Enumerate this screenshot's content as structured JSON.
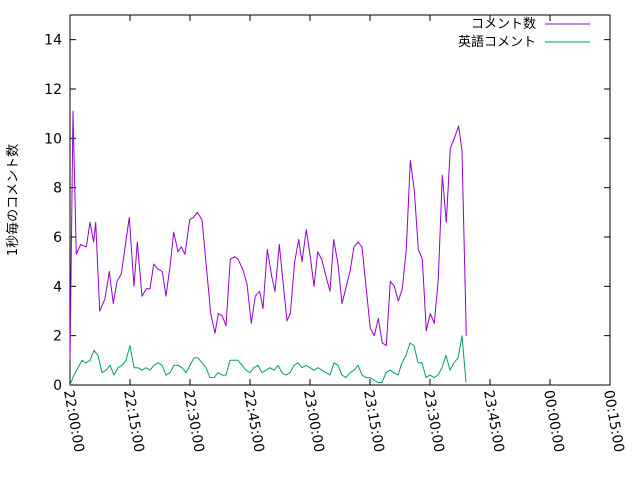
{
  "chart_data": {
    "type": "line",
    "title": "",
    "xlabel": "",
    "ylabel": "1秒毎のコメント数",
    "xlim": [
      "22:00:00",
      "00:15:00"
    ],
    "ylim": [
      0,
      15
    ],
    "grid": false,
    "legend_position": "top-right",
    "x_tick_labels": [
      "22:00:00",
      "22:15:00",
      "22:30:00",
      "22:45:00",
      "23:00:00",
      "23:15:00",
      "23:30:00",
      "23:45:00",
      "00:00:00",
      "00:15:00"
    ],
    "y_ticks": [
      0,
      2,
      4,
      6,
      8,
      10,
      12,
      14
    ],
    "series": [
      {
        "name": "コメント数",
        "color": "#9400d3",
        "points": [
          [
            "22:00:00",
            1.0
          ],
          [
            "22:00:45",
            11.1
          ],
          [
            "22:01:35",
            5.3
          ],
          [
            "22:02:40",
            5.7
          ],
          [
            "22:04:05",
            5.6
          ],
          [
            "22:05:00",
            6.6
          ],
          [
            "22:05:55",
            5.8
          ],
          [
            "22:06:25",
            6.6
          ],
          [
            "22:07:25",
            3.0
          ],
          [
            "22:08:45",
            3.5
          ],
          [
            "22:09:50",
            4.6
          ],
          [
            "22:10:50",
            3.3
          ],
          [
            "22:11:45",
            4.2
          ],
          [
            "22:12:50",
            4.5
          ],
          [
            "22:14:50",
            6.8
          ],
          [
            "22:16:00",
            4.0
          ],
          [
            "22:16:50",
            5.8
          ],
          [
            "22:18:00",
            3.6
          ],
          [
            "22:19:05",
            3.9
          ],
          [
            "22:20:00",
            3.9
          ],
          [
            "22:20:55",
            4.9
          ],
          [
            "22:22:00",
            4.7
          ],
          [
            "22:23:05",
            4.6
          ],
          [
            "22:24:00",
            3.6
          ],
          [
            "22:25:05",
            4.9
          ],
          [
            "22:25:55",
            6.2
          ],
          [
            "22:27:00",
            5.4
          ],
          [
            "22:27:50",
            5.6
          ],
          [
            "22:28:45",
            5.3
          ],
          [
            "22:29:55",
            6.7
          ],
          [
            "22:30:55",
            6.8
          ],
          [
            "22:31:50",
            7.0
          ],
          [
            "22:33:00",
            6.7
          ],
          [
            "22:35:10",
            2.9
          ],
          [
            "22:36:15",
            2.1
          ],
          [
            "22:37:05",
            2.9
          ],
          [
            "22:38:05",
            2.8
          ],
          [
            "22:39:00",
            2.4
          ],
          [
            "22:40:05",
            5.1
          ],
          [
            "22:41:10",
            5.2
          ],
          [
            "22:42:00",
            5.1
          ],
          [
            "22:43:10",
            4.7
          ],
          [
            "22:44:15",
            4.1
          ],
          [
            "22:45:20",
            2.5
          ],
          [
            "22:46:20",
            3.6
          ],
          [
            "22:47:25",
            3.8
          ],
          [
            "22:48:15",
            3.1
          ],
          [
            "22:49:20",
            5.5
          ],
          [
            "22:50:25",
            4.4
          ],
          [
            "22:51:15",
            3.8
          ],
          [
            "22:52:20",
            5.7
          ],
          [
            "22:53:10",
            4.3
          ],
          [
            "22:54:15",
            2.6
          ],
          [
            "22:55:05",
            2.9
          ],
          [
            "22:56:10",
            5.0
          ],
          [
            "22:57:10",
            5.9
          ],
          [
            "22:58:00",
            5.0
          ],
          [
            "22:59:05",
            6.3
          ],
          [
            "23:00:05",
            5.2
          ],
          [
            "23:01:00",
            4.0
          ],
          [
            "23:01:55",
            5.4
          ],
          [
            "23:02:55",
            5.1
          ],
          [
            "23:04:00",
            4.4
          ],
          [
            "23:05:00",
            3.8
          ],
          [
            "23:05:55",
            5.9
          ],
          [
            "23:07:00",
            4.9
          ],
          [
            "23:08:00",
            3.3
          ],
          [
            "23:08:55",
            3.9
          ],
          [
            "23:10:00",
            4.6
          ],
          [
            "23:11:00",
            5.6
          ],
          [
            "23:12:00",
            5.8
          ],
          [
            "23:13:00",
            5.6
          ],
          [
            "23:14:00",
            4.0
          ],
          [
            "23:15:05",
            2.3
          ],
          [
            "23:16:05",
            2.0
          ],
          [
            "23:17:05",
            2.7
          ],
          [
            "23:18:05",
            1.7
          ],
          [
            "23:19:05",
            1.6
          ],
          [
            "23:20:05",
            4.2
          ],
          [
            "23:21:05",
            4.0
          ],
          [
            "23:22:05",
            3.4
          ],
          [
            "23:23:05",
            3.9
          ],
          [
            "23:24:05",
            5.5
          ],
          [
            "23:25:05",
            9.1
          ],
          [
            "23:26:05",
            7.9
          ],
          [
            "23:27:05",
            5.5
          ],
          [
            "23:28:05",
            5.1
          ],
          [
            "23:29:05",
            2.2
          ],
          [
            "23:30:05",
            2.9
          ],
          [
            "23:31:05",
            2.5
          ],
          [
            "23:32:05",
            4.3
          ],
          [
            "23:33:05",
            8.5
          ],
          [
            "23:34:05",
            6.6
          ],
          [
            "23:35:05",
            9.6
          ],
          [
            "23:36:05",
            10.0
          ],
          [
            "23:37:10",
            10.5
          ],
          [
            "23:38:00",
            9.5
          ],
          [
            "23:39:05",
            2.0
          ]
        ]
      },
      {
        "name": "英語コメント",
        "color": "#009e73",
        "points": [
          [
            "22:00:00",
            0.0
          ],
          [
            "22:01:00",
            0.4
          ],
          [
            "22:02:00",
            0.7
          ],
          [
            "22:03:00",
            1.0
          ],
          [
            "22:04:00",
            0.9
          ],
          [
            "22:05:00",
            1.0
          ],
          [
            "22:06:00",
            1.4
          ],
          [
            "22:07:00",
            1.2
          ],
          [
            "22:08:00",
            0.5
          ],
          [
            "22:09:00",
            0.6
          ],
          [
            "22:10:00",
            0.8
          ],
          [
            "22:11:00",
            0.4
          ],
          [
            "22:12:00",
            0.7
          ],
          [
            "22:13:00",
            0.8
          ],
          [
            "22:14:00",
            1.0
          ],
          [
            "22:15:00",
            1.6
          ],
          [
            "22:16:00",
            0.7
          ],
          [
            "22:17:00",
            0.7
          ],
          [
            "22:18:00",
            0.6
          ],
          [
            "22:19:00",
            0.7
          ],
          [
            "22:20:00",
            0.6
          ],
          [
            "22:21:00",
            0.8
          ],
          [
            "22:22:00",
            0.9
          ],
          [
            "22:23:00",
            0.8
          ],
          [
            "22:24:00",
            0.4
          ],
          [
            "22:25:00",
            0.5
          ],
          [
            "22:26:00",
            0.8
          ],
          [
            "22:27:00",
            0.8
          ],
          [
            "22:28:00",
            0.7
          ],
          [
            "22:29:00",
            0.5
          ],
          [
            "22:30:00",
            0.8
          ],
          [
            "22:31:00",
            1.1
          ],
          [
            "22:32:00",
            1.1
          ],
          [
            "22:33:00",
            0.9
          ],
          [
            "22:34:00",
            0.7
          ],
          [
            "22:35:00",
            0.3
          ],
          [
            "22:36:00",
            0.3
          ],
          [
            "22:37:00",
            0.5
          ],
          [
            "22:38:00",
            0.4
          ],
          [
            "22:39:00",
            0.4
          ],
          [
            "22:40:00",
            1.0
          ],
          [
            "22:41:00",
            1.0
          ],
          [
            "22:42:00",
            1.0
          ],
          [
            "22:43:00",
            0.8
          ],
          [
            "22:44:00",
            0.6
          ],
          [
            "22:45:00",
            0.5
          ],
          [
            "22:46:00",
            0.7
          ],
          [
            "22:47:00",
            0.8
          ],
          [
            "22:48:00",
            0.5
          ],
          [
            "22:49:00",
            0.6
          ],
          [
            "22:50:00",
            0.7
          ],
          [
            "22:51:00",
            0.6
          ],
          [
            "22:52:00",
            0.8
          ],
          [
            "22:53:00",
            0.5
          ],
          [
            "22:54:00",
            0.4
          ],
          [
            "22:55:00",
            0.5
          ],
          [
            "22:56:00",
            0.8
          ],
          [
            "22:57:00",
            0.9
          ],
          [
            "22:58:00",
            0.7
          ],
          [
            "22:59:00",
            0.8
          ],
          [
            "23:00:00",
            0.7
          ],
          [
            "23:01:00",
            0.6
          ],
          [
            "23:02:00",
            0.7
          ],
          [
            "23:03:00",
            0.6
          ],
          [
            "23:04:00",
            0.5
          ],
          [
            "23:05:00",
            0.4
          ],
          [
            "23:06:00",
            0.9
          ],
          [
            "23:07:00",
            0.8
          ],
          [
            "23:08:00",
            0.4
          ],
          [
            "23:09:00",
            0.3
          ],
          [
            "23:10:00",
            0.5
          ],
          [
            "23:11:00",
            0.6
          ],
          [
            "23:12:00",
            0.8
          ],
          [
            "23:13:00",
            0.4
          ],
          [
            "23:14:00",
            0.3
          ],
          [
            "23:15:00",
            0.3
          ],
          [
            "23:16:00",
            0.2
          ],
          [
            "23:17:00",
            0.1
          ],
          [
            "23:18:00",
            0.1
          ],
          [
            "23:19:00",
            0.5
          ],
          [
            "23:20:00",
            0.6
          ],
          [
            "23:21:00",
            0.5
          ],
          [
            "23:22:00",
            0.4
          ],
          [
            "23:23:00",
            0.9
          ],
          [
            "23:24:00",
            1.2
          ],
          [
            "23:25:00",
            1.7
          ],
          [
            "23:26:00",
            1.6
          ],
          [
            "23:27:00",
            0.9
          ],
          [
            "23:28:00",
            0.9
          ],
          [
            "23:29:00",
            0.3
          ],
          [
            "23:30:00",
            0.4
          ],
          [
            "23:31:00",
            0.3
          ],
          [
            "23:32:00",
            0.4
          ],
          [
            "23:33:00",
            0.7
          ],
          [
            "23:34:00",
            1.2
          ],
          [
            "23:35:00",
            0.6
          ],
          [
            "23:36:00",
            0.9
          ],
          [
            "23:37:00",
            1.1
          ],
          [
            "23:38:00",
            2.0
          ],
          [
            "23:39:00",
            0.1
          ]
        ]
      }
    ]
  }
}
